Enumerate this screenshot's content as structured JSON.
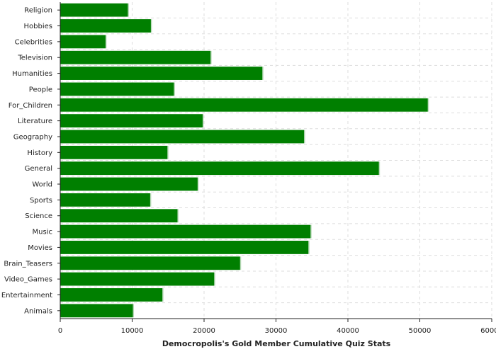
{
  "chart_data": {
    "type": "bar",
    "orientation": "horizontal",
    "title": "",
    "xlabel": "Democropolis's Gold Member Cumulative Quiz Stats",
    "ylabel": "",
    "xlim": [
      0,
      60000
    ],
    "xticks": [
      0,
      10000,
      20000,
      30000,
      40000,
      50000,
      60000
    ],
    "grid": true,
    "bar_color": "#007f00",
    "categories": [
      "Religion",
      "Hobbies",
      "Celebrities",
      "Television",
      "Humanities",
      "People",
      "For_Children",
      "Literature",
      "Geography",
      "History",
      "General",
      "World",
      "Sports",
      "Science",
      "Music",
      "Movies",
      "Brain_Teasers",
      "Video_Games",
      "Entertainment",
      "Animals"
    ],
    "values": [
      9400,
      12600,
      6300,
      20900,
      28100,
      15800,
      51100,
      19800,
      33900,
      14900,
      44300,
      19100,
      12500,
      16300,
      34800,
      34500,
      25000,
      21400,
      14200,
      10100
    ]
  }
}
